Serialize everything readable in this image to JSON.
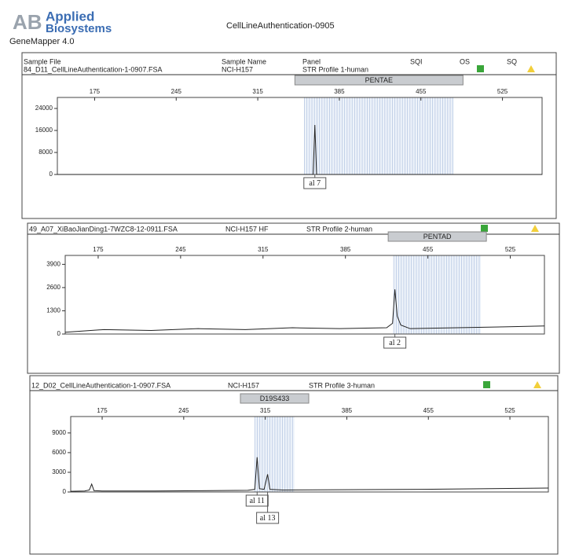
{
  "header": {
    "logo_top": "Applied",
    "logo_bottom": "Biosystems",
    "software": "GeneMapper  4.0",
    "title": "CellLineAuthentication-0905"
  },
  "columns": [
    "Sample File",
    "Sample Name",
    "Panel",
    "SQI",
    "OS",
    "SQ"
  ],
  "panels": [
    {
      "sample_file": "84_D11_CellLineAuthentication-1-0907.FSA",
      "sample_name": "NCI-H157",
      "panel": "STR Profile 1-human"
    },
    {
      "sample_file": "49_A07_XiBaoJianDing1-7WZC8-12-0911.FSA",
      "sample_name": "NCI-H157 HF",
      "panel": "STR Profile 2-human"
    },
    {
      "sample_file": "12_D02_CellLineAuthentication-1-0907.FSA",
      "sample_name": "NCI-H157",
      "panel": "STR Profile 3-human"
    }
  ],
  "chart_data": [
    {
      "type": "line",
      "marker": "PENTAE",
      "color": "#222222",
      "x": [
        143,
        200,
        300,
        360,
        362.5,
        364,
        365.5,
        368,
        450,
        559
      ],
      "values": [
        0,
        0,
        0,
        0,
        0,
        18000,
        0,
        0,
        0,
        0
      ],
      "xlim": [
        143,
        559
      ],
      "xticks": [
        175,
        245,
        315,
        385,
        455,
        525
      ],
      "ylim": [
        0,
        28000
      ],
      "yticks": [
        0,
        8000,
        16000,
        24000
      ],
      "bin_range": [
        355,
        483
      ],
      "annotations": [
        {
          "x": 364,
          "label": "al 7"
        }
      ]
    },
    {
      "type": "line",
      "marker": "PENTAD",
      "color": "#222222",
      "x": [
        147,
        180,
        220,
        260,
        300,
        340,
        380,
        420,
        425,
        427,
        429,
        432,
        440,
        480,
        520,
        554
      ],
      "values": [
        100,
        250,
        200,
        300,
        250,
        350,
        300,
        350,
        600,
        2500,
        1000,
        500,
        300,
        350,
        400,
        450
      ],
      "xlim": [
        147,
        554
      ],
      "xticks": [
        175,
        245,
        315,
        385,
        455,
        525
      ],
      "ylim": [
        0,
        4400
      ],
      "yticks": [
        0,
        1300,
        2600,
        3900
      ],
      "bin_range": [
        426,
        500
      ],
      "annotations": [
        {
          "x": 427,
          "label": "al 2"
        }
      ]
    },
    {
      "type": "line",
      "marker": "D19S433",
      "color": "#222222",
      "x": [
        148,
        160,
        164,
        166,
        168,
        175,
        220,
        260,
        300,
        306,
        308,
        310,
        314,
        317,
        319,
        330,
        380,
        450,
        500,
        558
      ],
      "values": [
        100,
        150,
        300,
        1200,
        200,
        150,
        150,
        200,
        250,
        400,
        5300,
        500,
        400,
        2700,
        400,
        300,
        350,
        400,
        500,
        600
      ],
      "xlim": [
        148,
        558
      ],
      "xticks": [
        175,
        245,
        315,
        385,
        455,
        525
      ],
      "ylim": [
        0,
        11500
      ],
      "yticks": [
        0,
        3000,
        6000,
        9000
      ],
      "bin_range": [
        306,
        340
      ],
      "annotations": [
        {
          "x": 308,
          "label": "al 11"
        },
        {
          "x": 317,
          "label": "al 13"
        }
      ]
    }
  ]
}
